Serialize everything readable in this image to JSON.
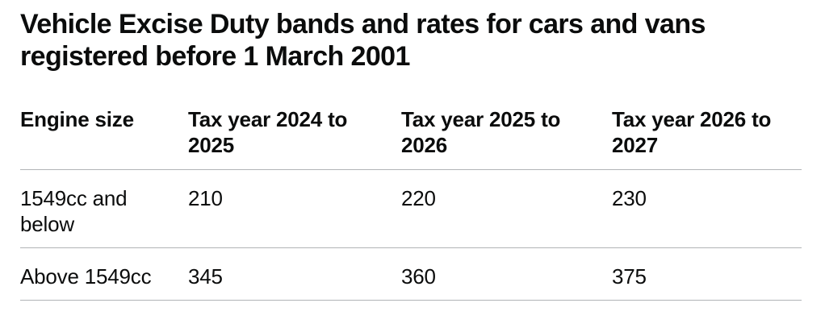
{
  "heading": {
    "title": "Vehicle Excise Duty bands and rates for cars and vans\nregistered before 1 March 2001"
  },
  "table": {
    "columns": [
      "Engine size",
      "Tax year 2024 to 2025",
      "Tax year 2025 to 2026",
      "Tax year 2026 to 2027"
    ],
    "rows": [
      [
        "1549cc and below",
        "210",
        "220",
        "230"
      ],
      [
        "Above 1549cc",
        "345",
        "360",
        "375"
      ]
    ]
  },
  "colors": {
    "text": "#0b0c0c",
    "border": "#b1b4b6",
    "background": "#ffffff"
  }
}
